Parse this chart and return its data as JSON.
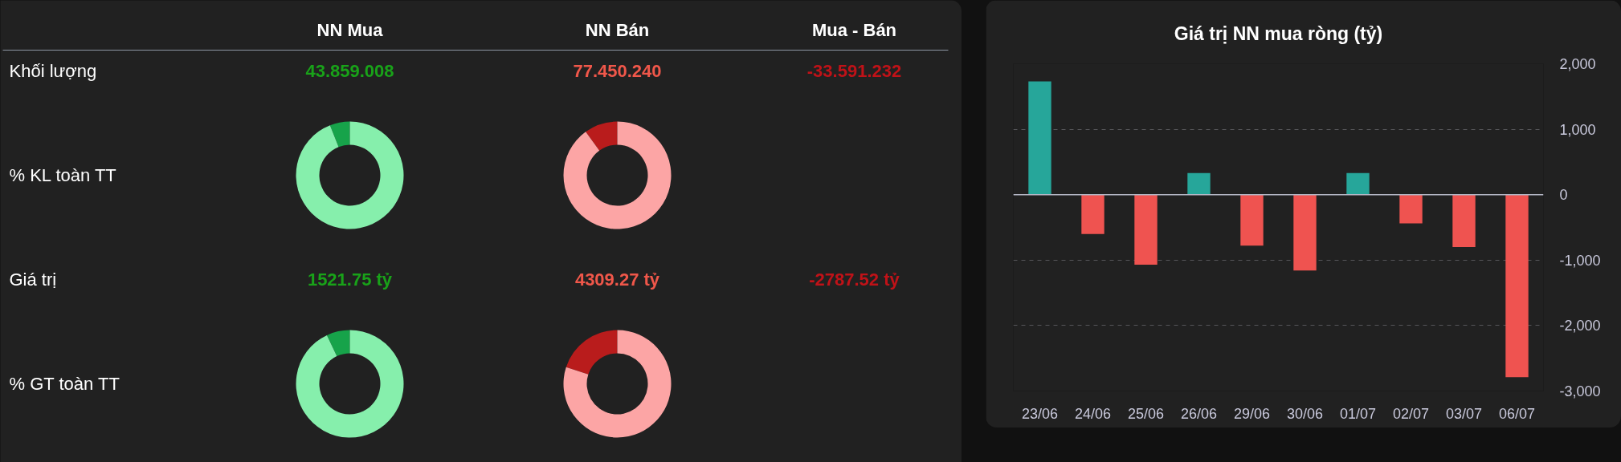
{
  "chart_data": [
    {
      "type": "other",
      "categories": [
        "NN Mua",
        "NN Bán",
        "Mua - Bán"
      ],
      "y_categories": [
        "Khối lượng",
        "% KL toàn TT",
        "Giá trị",
        "% GT toàn TT"
      ],
      "cell_labels": [
        [
          "43.859.008",
          "77.450.240",
          "-33.591.232"
        ],
        [
          null,
          null,
          null
        ],
        [
          "1521.75 tỷ",
          "4309.27 tỷ",
          "-2787.52 tỷ"
        ],
        [
          null,
          null,
          null
        ]
      ]
    },
    {
      "type": "donut",
      "categories": [
        null,
        null
      ],
      "values": [
        6,
        94
      ],
      "colors": [
        "#17a34a",
        "#86efac"
      ]
    },
    {
      "type": "donut",
      "categories": [
        null,
        null
      ],
      "values": [
        10,
        90
      ],
      "colors": [
        "#b91c1c",
        "#fca5a5"
      ]
    },
    {
      "type": "donut",
      "categories": [
        null,
        null
      ],
      "values": [
        7,
        93
      ],
      "colors": [
        "#17a34a",
        "#86efac"
      ]
    },
    {
      "type": "donut",
      "categories": [
        null,
        null
      ],
      "values": [
        20,
        80
      ],
      "colors": [
        "#b91c1c",
        "#fca5a5"
      ]
    },
    {
      "type": "bar",
      "title": "Giá trị NN mua ròng (tỷ)",
      "categories": [
        "23/06",
        "24/06",
        "25/06",
        "26/06",
        "29/06",
        "30/06",
        "01/07",
        "02/07",
        "03/07",
        "06/07"
      ],
      "values": [
        1730,
        -600,
        -1070,
        330,
        -780,
        -1160,
        330,
        -440,
        -800,
        -2790
      ],
      "colors": [
        "#26a69a",
        "#ef5350",
        "#ef5350",
        "#26a69a",
        "#ef5350",
        "#ef5350",
        "#26a69a",
        "#ef5350",
        "#ef5350",
        "#ef5350"
      ],
      "ylim": [
        -3000,
        2000
      ],
      "yticks": [
        {
          "value": 2000,
          "label": "2,000"
        },
        {
          "value": 1000,
          "label": "1,000"
        },
        0,
        {
          "value": -1000,
          "label": "-1,000"
        },
        {
          "value": -2000,
          "label": "-2,000"
        },
        {
          "value": -3000,
          "label": "-3,000"
        }
      ],
      "grid": "y"
    }
  ]
}
